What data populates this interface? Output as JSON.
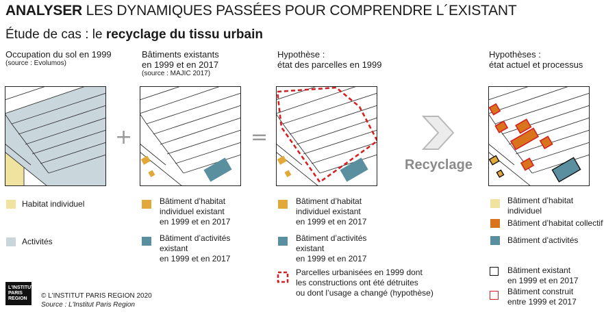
{
  "header": {
    "title_bold": "ANALYSER",
    "title_rest": " LES DYNAMIQUES PASSÉES POUR COMPRENDRE L´EXISTANT",
    "subtitle_pre": "Étude de cas : le ",
    "subtitle_bold": "recyclage du tissu urbain"
  },
  "columns": [
    {
      "title": "Occupation du sol en 1999",
      "source": "(source : Evolumos)"
    },
    {
      "title_l1": "Bâtiments existants",
      "title_l2": "en 1999 et en 2017",
      "source": "(source : MAJIC 2017)"
    },
    {
      "title_l1": "Hypothèse :",
      "title_l2": "état des parcelles en 1999"
    },
    {
      "title_l1": "Hypothèses :",
      "title_l2": "état actuel et processus"
    }
  ],
  "operators": {
    "plus": "+",
    "equals": "=",
    "recycle": "Recyclage"
  },
  "legend": {
    "col1": [
      {
        "label": "Habitat individuel",
        "color": "#f0e3a0"
      },
      {
        "label": "Activités",
        "color": "#c9d6dc"
      }
    ],
    "col2": [
      {
        "l1": "Bâtiment d’habitat",
        "l2": "individuel existant",
        "l3": "en 1999 et en 2017",
        "color": "#e1a93a"
      },
      {
        "l1": "Bâtiment d’activités",
        "l2": "existant",
        "l3": "en 1999 et en 2017",
        "color": "#5a8fa0"
      }
    ],
    "col3": [
      {
        "l1": "Bâtiment d’habitat",
        "l2": "individuel existant",
        "l3": "en 1999 et en 2017",
        "color": "#e1a93a"
      },
      {
        "l1": "Bâtiment d’activités",
        "l2": "existant",
        "l3": "en 1999 et en 2017",
        "color": "#5a8fa0"
      },
      {
        "l1": "Parcelles urbanisées en 1999 dont",
        "l2": "les constructions ont été détruites",
        "l3": "ou dont l’usage a changé (hypothèse)",
        "color": "#d42020"
      }
    ],
    "col4": [
      {
        "l1": "Bâtiment d’habitat",
        "l2": "individuel",
        "color": "#e1a93a"
      },
      {
        "l1": "Bâtiment d’habitat collectif",
        "color": "#d9731c"
      },
      {
        "l1": "Bâtiment d’activités",
        "color": "#5a8fa0"
      },
      {
        "l1": "Bâtiment existant",
        "l2": "en 1999 et en 2017",
        "color": "#111111"
      },
      {
        "l1": "Bâtiment construit",
        "l2": "entre 1999 et 2017",
        "color": "#d42020"
      }
    ]
  },
  "footer": {
    "logo_l1": "L'INSTITUT",
    "logo_l2": "PARIS",
    "logo_l3": "REGION",
    "copyright": "© L'INSTITUT PARIS REGION 2020",
    "source": "Source : L'Institut Paris Region"
  }
}
